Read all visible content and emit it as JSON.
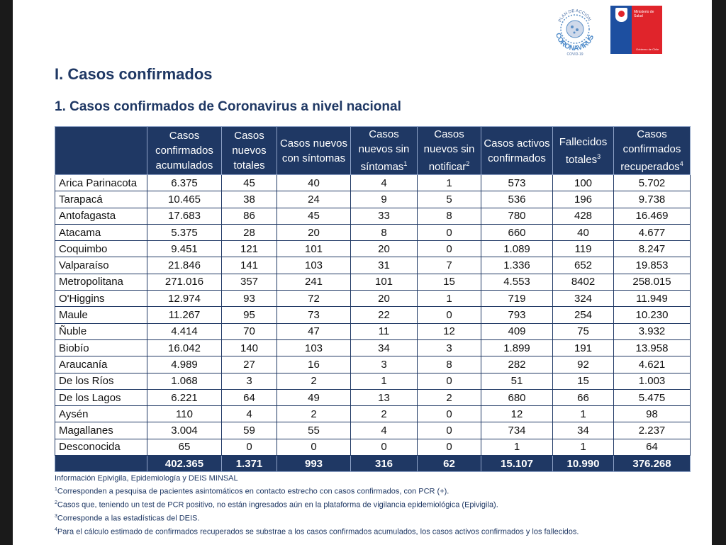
{
  "header": {
    "heading": "I. Casos confirmados",
    "subheading": "1. Casos confirmados de Coronavirus a nivel nacional",
    "logos": {
      "plan": {
        "text_top": "PLAN DE ACCIÓN",
        "text_main": "CORONAVIRUS",
        "text_bottom": "COVID-19",
        "icon": "coronavirus-seal"
      },
      "ministry": {
        "text": "Ministerio de Salud",
        "subtext": "Gobierno de Chile",
        "icon": "chile-shield",
        "colors": {
          "blue": "#1d4fa0",
          "red": "#e0242b"
        }
      }
    }
  },
  "table": {
    "columns": [
      {
        "label": "",
        "sup": ""
      },
      {
        "label": "Casos confirmados acumulados",
        "sup": ""
      },
      {
        "label": "Casos nuevos totales",
        "sup": ""
      },
      {
        "label": "Casos nuevos con síntomas",
        "sup": ""
      },
      {
        "label": "Casos nuevos sin síntomas",
        "sup": "1"
      },
      {
        "label": "Casos nuevos sin notificar",
        "sup": "2"
      },
      {
        "label": "Casos activos confirmados",
        "sup": ""
      },
      {
        "label": "Fallecidos totales",
        "sup": "3"
      },
      {
        "label": "Casos confirmados recuperados",
        "sup": "4"
      }
    ],
    "rows": [
      [
        "Arica Parinacota",
        "6.375",
        "45",
        "40",
        "4",
        "1",
        "573",
        "100",
        "5.702"
      ],
      [
        "Tarapacá",
        "10.465",
        "38",
        "24",
        "9",
        "5",
        "536",
        "196",
        "9.738"
      ],
      [
        "Antofagasta",
        "17.683",
        "86",
        "45",
        "33",
        "8",
        "780",
        "428",
        "16.469"
      ],
      [
        "Atacama",
        "5.375",
        "28",
        "20",
        "8",
        "0",
        "660",
        "40",
        "4.677"
      ],
      [
        "Coquimbo",
        "9.451",
        "121",
        "101",
        "20",
        "0",
        "1.089",
        "119",
        "8.247"
      ],
      [
        "Valparaíso",
        "21.846",
        "141",
        "103",
        "31",
        "7",
        "1.336",
        "652",
        "19.853"
      ],
      [
        "Metropolitana",
        "271.016",
        "357",
        "241",
        "101",
        "15",
        "4.553",
        "8402",
        "258.015"
      ],
      [
        "O'Higgins",
        "12.974",
        "93",
        "72",
        "20",
        "1",
        "719",
        "324",
        "11.949"
      ],
      [
        "Maule",
        "11.267",
        "95",
        "73",
        "22",
        "0",
        "793",
        "254",
        "10.230"
      ],
      [
        "Ñuble",
        "4.414",
        "70",
        "47",
        "11",
        "12",
        "409",
        "75",
        "3.932"
      ],
      [
        "Biobío",
        "16.042",
        "140",
        "103",
        "34",
        "3",
        "1.899",
        "191",
        "13.958"
      ],
      [
        "Araucanía",
        "4.989",
        "27",
        "16",
        "3",
        "8",
        "282",
        "92",
        "4.621"
      ],
      [
        "De los Ríos",
        "1.068",
        "3",
        "2",
        "1",
        "0",
        "51",
        "15",
        "1.003"
      ],
      [
        "De los Lagos",
        "6.221",
        "64",
        "49",
        "13",
        "2",
        "680",
        "66",
        "5.475"
      ],
      [
        "Aysén",
        "110",
        "4",
        "2",
        "2",
        "0",
        "12",
        "1",
        "98"
      ],
      [
        "Magallanes",
        "3.004",
        "59",
        "55",
        "4",
        "0",
        "734",
        "34",
        "2.237"
      ],
      [
        "Desconocida",
        "65",
        "0",
        "0",
        "0",
        "0",
        "1",
        "1",
        "64"
      ]
    ],
    "total": [
      "",
      "402.365",
      "1.371",
      "993",
      "316",
      "62",
      "15.107",
      "10.990",
      "376.268"
    ]
  },
  "notes": {
    "source": "Información Epivigila, Epidemiología y DEIS MINSAL",
    "items": [
      {
        "sup": "1",
        "text": "Corresponden a pesquisa de pacientes asintomáticos en contacto estrecho con casos confirmados, con PCR (+)."
      },
      {
        "sup": "2",
        "text": "Casos que, teniendo un test de PCR positivo, no están ingresados aún en la plataforma de vigilancia epidemiológica (Epivigila)."
      },
      {
        "sup": "3",
        "text": "Corresponde a las estadísticas del DEIS."
      },
      {
        "sup": "4",
        "text": "Para el cálculo estimado de confirmados recuperados se substrae a los casos confirmados acumulados, los casos activos confirmados y los fallecidos."
      }
    ]
  },
  "colors": {
    "header_bg": "#1f3864",
    "title": "#1f3864",
    "page_bg": "#ffffff",
    "surround": "#1a1a1a"
  }
}
